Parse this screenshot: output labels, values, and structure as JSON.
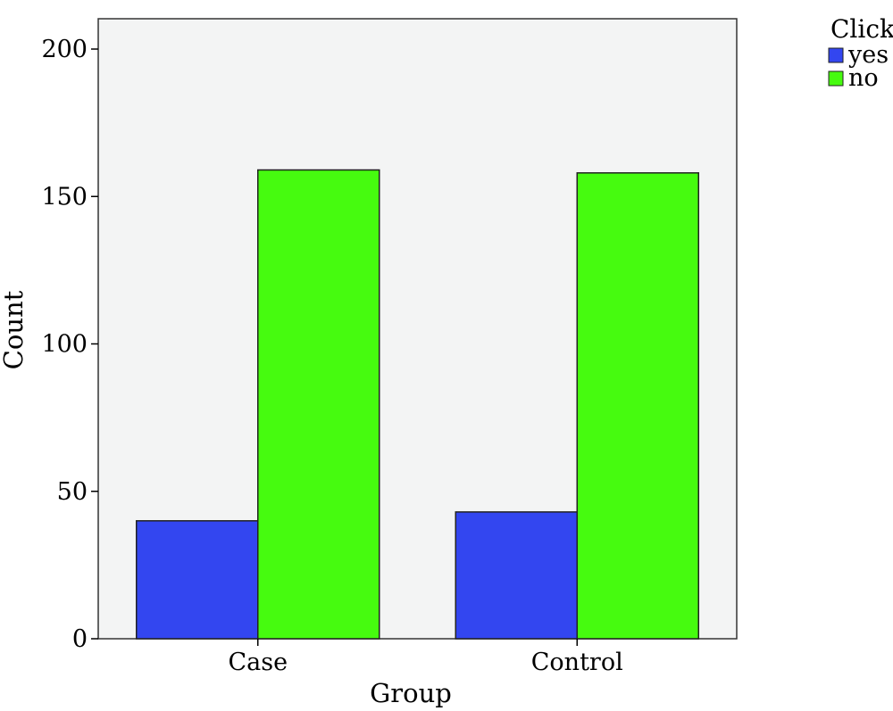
{
  "chart_data": {
    "type": "bar",
    "xlabel": "Group",
    "ylabel": "Count",
    "categories": [
      "Case",
      "Control"
    ],
    "series": [
      {
        "name": "yes",
        "values": [
          40,
          43
        ],
        "color": "#3346f0"
      },
      {
        "name": "no",
        "values": [
          159,
          158
        ],
        "color": "#46fb0f"
      }
    ],
    "ylim": [
      0,
      200
    ],
    "yticks": [
      0,
      50,
      100,
      150,
      200
    ],
    "legend": {
      "title": "Click",
      "position": "top-right"
    },
    "grid": false,
    "plot_background": "#f3f4f4"
  }
}
